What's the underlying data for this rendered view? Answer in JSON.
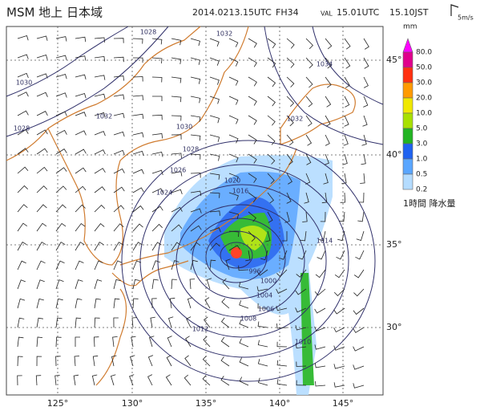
{
  "header": {
    "title": "MSM 地上 日本域",
    "init_time": "2014.0213.15UTC",
    "forecast_hour": "FH34",
    "valid_label": "VAL",
    "valid_utc": "15.01UTC",
    "valid_jst": "15.10JST",
    "wind_scale": "5m/s"
  },
  "legend": {
    "unit": "mm",
    "caption": "1時間 降水量",
    "levels": [
      {
        "label": "80.0",
        "color": "#ff00ff"
      },
      {
        "label": "50.0",
        "color": "#e0008c"
      },
      {
        "label": "30.0",
        "color": "#ff3010"
      },
      {
        "label": "20.0",
        "color": "#ff9a00"
      },
      {
        "label": "10.0",
        "color": "#f0e800"
      },
      {
        "label": "5.0",
        "color": "#a8e000"
      },
      {
        "label": "3.0",
        "color": "#22b422"
      },
      {
        "label": "1.0",
        "color": "#1f62f0"
      },
      {
        "label": "0.5",
        "color": "#5aa6ff"
      },
      {
        "label": "0.2",
        "color": "#b4dcff"
      }
    ]
  },
  "map": {
    "lon_labels": [
      "125°",
      "130°",
      "135°",
      "140°",
      "145°"
    ],
    "lat_labels": [
      "45°",
      "40°",
      "35°",
      "30°"
    ],
    "isobar_labels": [
      "1028",
      "1032",
      "1030",
      "1028",
      "1032",
      "1034",
      "1032",
      "1030",
      "1028",
      "1026",
      "1024",
      "1020",
      "1016",
      "1014",
      "996",
      "1000",
      "1004",
      "1006",
      "1008",
      "1010",
      "1012"
    ]
  }
}
